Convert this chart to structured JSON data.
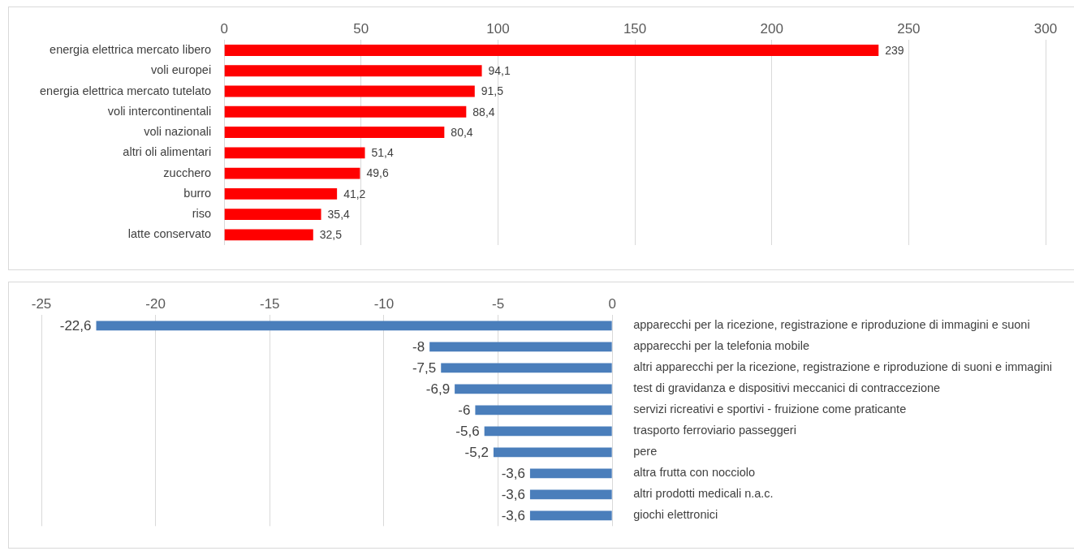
{
  "chart_data": [
    {
      "type": "bar",
      "orientation": "horizontal",
      "categories": [
        "energia elettrica mercato libero",
        "voli europei",
        "energia elettrica mercato tutelato",
        "voli intercontinentali",
        "voli nazionali",
        "altri oli alimentari",
        "zucchero",
        "burro",
        "riso",
        "latte conservato"
      ],
      "values": [
        239,
        94.1,
        91.5,
        88.4,
        80.4,
        51.4,
        49.6,
        41.2,
        35.4,
        32.5
      ],
      "value_labels": [
        "239",
        "94,1",
        "91,5",
        "88,4",
        "80,4",
        "51,4",
        "49,6",
        "41,2",
        "35,4",
        "32,5"
      ],
      "color": "#ff0000",
      "xlim": [
        0,
        300
      ],
      "xticks": [
        0,
        50,
        100,
        150,
        200,
        250,
        300
      ],
      "grid": "x"
    },
    {
      "type": "bar",
      "orientation": "horizontal",
      "categories": [
        "apparecchi per la ricezione, registrazione e riproduzione di immagini e suoni",
        "apparecchi per la telefonia mobile",
        "altri apparecchi per la ricezione, registrazione e riproduzione di suoni e immagini",
        "test di gravidanza e dispositivi meccanici di contraccezione",
        "servizi ricreativi e sportivi - fruizione come praticante",
        "trasporto ferroviario passeggeri",
        "pere",
        "altra frutta con nocciolo",
        "altri prodotti medicali n.a.c.",
        "giochi elettronici"
      ],
      "values": [
        -22.6,
        -8,
        -7.5,
        -6.9,
        -6,
        -5.6,
        -5.2,
        -3.6,
        -3.6,
        -3.6
      ],
      "value_labels": [
        "-22,6",
        "-8",
        "-7,5",
        "-6,9",
        "-6",
        "-5,6",
        "-5,2",
        "-3,6",
        "-3,6",
        "-3,6"
      ],
      "color": "#4a7ebb",
      "xlim": [
        -25,
        0
      ],
      "xticks": [
        -25,
        -20,
        -15,
        -10,
        -5,
        0
      ],
      "grid": "x"
    }
  ]
}
